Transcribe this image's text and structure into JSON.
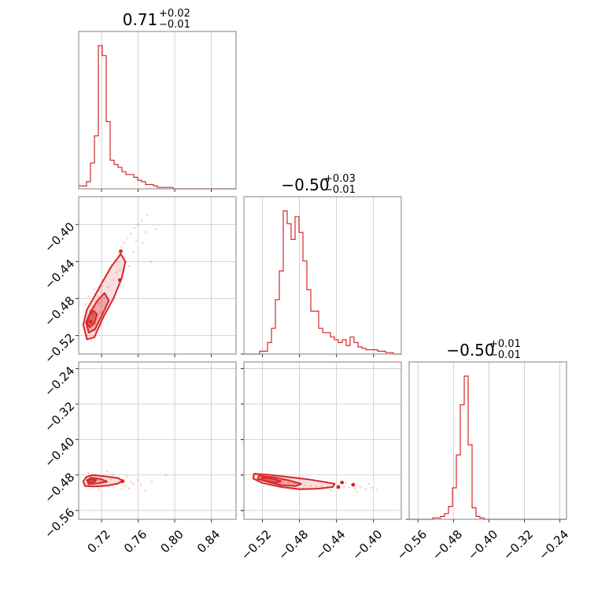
{
  "chart_data": {
    "type": "corner",
    "color": "#d62728",
    "parameters": [
      {
        "id": "p0",
        "range": [
          0.695,
          0.867
        ],
        "ticks": [
          "0.72",
          "0.76",
          "0.80",
          "0.84"
        ],
        "title": {
          "value": "0.71",
          "plus": "+0.02",
          "minus": "−0.01"
        }
      },
      {
        "id": "p1",
        "range": [
          -0.54,
          -0.37
        ],
        "ticks": [
          "−0.52",
          "−0.48",
          "−0.44",
          "−0.40"
        ],
        "title": {
          "value": "−0.50",
          "plus": "+0.03",
          "minus": "−0.01"
        }
      },
      {
        "id": "p2",
        "range": [
          -0.58,
          -0.225
        ],
        "ticks": [
          "−0.56",
          "−0.48",
          "−0.40",
          "−0.32",
          "−0.24"
        ],
        "title": {
          "value": "−0.50",
          "plus": "+0.01",
          "minus": "−0.01"
        }
      }
    ],
    "histograms": [
      {
        "param": 0,
        "edges_start": 0.695,
        "edges_end": 0.867,
        "counts": [
          2,
          2,
          5,
          18,
          37,
          100,
          93,
          47,
          20,
          17,
          15,
          12,
          10,
          10,
          8,
          6,
          5,
          3,
          3,
          2,
          1,
          1,
          1,
          1,
          0,
          0,
          0,
          0,
          0,
          0,
          0,
          0,
          0,
          0,
          0,
          0,
          0,
          0,
          0,
          0
        ]
      },
      {
        "param": 1,
        "edges_start": -0.54,
        "edges_end": -0.37,
        "counts": [
          0,
          0,
          0,
          0,
          2,
          2,
          8,
          18,
          38,
          58,
          100,
          91,
          80,
          96,
          85,
          65,
          45,
          30,
          30,
          18,
          15,
          15,
          12,
          10,
          8,
          10,
          6,
          12,
          8,
          5,
          4,
          3,
          3,
          3,
          2,
          2,
          1,
          1,
          0,
          0
        ]
      },
      {
        "param": 2,
        "edges_start": -0.58,
        "edges_end": -0.225,
        "counts": [
          0,
          0,
          0,
          0,
          0,
          0,
          1,
          1,
          2,
          4,
          9,
          22,
          45,
          80,
          100,
          52,
          8,
          2,
          1,
          0,
          0,
          0,
          0,
          0,
          0,
          0,
          0,
          0,
          0,
          0,
          0,
          0,
          0,
          0,
          0,
          0,
          0,
          0,
          0,
          0
        ]
      }
    ],
    "scatter": [
      {
        "x_param": 0,
        "y_param": 1,
        "points": [
          [
            0.704,
            -0.52
          ],
          [
            0.706,
            -0.512
          ],
          [
            0.708,
            -0.505
          ],
          [
            0.71,
            -0.498
          ],
          [
            0.712,
            -0.49
          ],
          [
            0.705,
            -0.5
          ],
          [
            0.707,
            -0.493
          ],
          [
            0.711,
            -0.507
          ],
          [
            0.714,
            -0.483
          ],
          [
            0.716,
            -0.478
          ],
          [
            0.718,
            -0.472
          ],
          [
            0.72,
            -0.466
          ],
          [
            0.722,
            -0.46
          ],
          [
            0.725,
            -0.455
          ],
          [
            0.728,
            -0.448
          ],
          [
            0.731,
            -0.444
          ],
          [
            0.735,
            -0.438
          ],
          [
            0.739,
            -0.432
          ],
          [
            0.742,
            -0.425
          ],
          [
            0.745,
            -0.42
          ],
          [
            0.748,
            -0.415
          ],
          [
            0.752,
            -0.41
          ],
          [
            0.756,
            -0.404
          ],
          [
            0.76,
            -0.4
          ],
          [
            0.764,
            -0.396
          ],
          [
            0.77,
            -0.39
          ],
          [
            0.709,
            -0.525
          ],
          [
            0.713,
            -0.515
          ],
          [
            0.719,
            -0.495
          ],
          [
            0.724,
            -0.475
          ],
          [
            0.733,
            -0.46
          ],
          [
            0.74,
            -0.45
          ],
          [
            0.747,
            -0.44
          ],
          [
            0.755,
            -0.43
          ],
          [
            0.765,
            -0.42
          ],
          [
            0.78,
            -0.405
          ],
          [
            0.703,
            -0.486
          ],
          [
            0.706,
            -0.478
          ],
          [
            0.712,
            -0.47
          ],
          [
            0.717,
            -0.485
          ],
          [
            0.727,
            -0.468
          ],
          [
            0.736,
            -0.452
          ],
          [
            0.75,
            -0.445
          ],
          [
            0.758,
            -0.418
          ],
          [
            0.768,
            -0.408
          ],
          [
            0.774,
            -0.44
          ]
        ],
        "contours": [
          [
            [
              0.704,
              -0.524
            ],
            [
              0.712,
              -0.522
            ],
            [
              0.722,
              -0.5
            ],
            [
              0.733,
              -0.48
            ],
            [
              0.742,
              -0.458
            ],
            [
              0.746,
              -0.44
            ],
            [
              0.741,
              -0.432
            ],
            [
              0.731,
              -0.445
            ],
            [
              0.721,
              -0.462
            ],
            [
              0.712,
              -0.478
            ],
            [
              0.704,
              -0.492
            ],
            [
              0.7,
              -0.508
            ]
          ],
          [
            [
              0.706,
              -0.517
            ],
            [
              0.713,
              -0.513
            ],
            [
              0.721,
              -0.497
            ],
            [
              0.728,
              -0.482
            ],
            [
              0.723,
              -0.474
            ],
            [
              0.715,
              -0.483
            ],
            [
              0.708,
              -0.494
            ],
            [
              0.703,
              -0.506
            ]
          ],
          [
            [
              0.707,
              -0.511
            ],
            [
              0.712,
              -0.507
            ],
            [
              0.715,
              -0.497
            ],
            [
              0.711,
              -0.493
            ],
            [
              0.706,
              -0.499
            ],
            [
              0.704,
              -0.507
            ]
          ]
        ],
        "markers": [
          [
            0.741,
            -0.429
          ],
          [
            0.74,
            -0.46
          ],
          [
            0.708,
            -0.505
          ]
        ]
      },
      {
        "x_param": 0,
        "y_param": 2,
        "points": [
          [
            0.704,
            -0.49
          ],
          [
            0.708,
            -0.485
          ],
          [
            0.712,
            -0.495
          ],
          [
            0.716,
            -0.488
          ],
          [
            0.72,
            -0.492
          ],
          [
            0.725,
            -0.497
          ],
          [
            0.73,
            -0.49
          ],
          [
            0.735,
            -0.5
          ],
          [
            0.74,
            -0.495
          ],
          [
            0.745,
            -0.505
          ],
          [
            0.75,
            -0.51
          ],
          [
            0.755,
            -0.5
          ],
          [
            0.76,
            -0.492
          ],
          [
            0.706,
            -0.475
          ],
          [
            0.71,
            -0.505
          ],
          [
            0.714,
            -0.478
          ],
          [
            0.722,
            -0.482
          ],
          [
            0.728,
            -0.507
          ],
          [
            0.733,
            -0.48
          ],
          [
            0.738,
            -0.486
          ],
          [
            0.742,
            -0.512
          ],
          [
            0.748,
            -0.483
          ],
          [
            0.752,
            -0.496
          ],
          [
            0.763,
            -0.502
          ],
          [
            0.768,
            -0.515
          ],
          [
            0.775,
            -0.495
          ],
          [
            0.79,
            -0.48
          ],
          [
            0.703,
            -0.5
          ],
          [
            0.717,
            -0.51
          ],
          [
            0.726,
            -0.472
          ]
        ],
        "contours": [
          [
            [
              0.702,
              -0.505
            ],
            [
              0.712,
              -0.506
            ],
            [
              0.726,
              -0.504
            ],
            [
              0.737,
              -0.5
            ],
            [
              0.744,
              -0.494
            ],
            [
              0.738,
              -0.487
            ],
            [
              0.724,
              -0.483
            ],
            [
              0.71,
              -0.48
            ],
            [
              0.703,
              -0.485
            ],
            [
              0.7,
              -0.495
            ]
          ],
          [
            [
              0.706,
              -0.501
            ],
            [
              0.716,
              -0.499
            ],
            [
              0.726,
              -0.495
            ],
            [
              0.719,
              -0.489
            ],
            [
              0.709,
              -0.486
            ],
            [
              0.704,
              -0.492
            ]
          ],
          [
            [
              0.707,
              -0.497
            ],
            [
              0.713,
              -0.495
            ],
            [
              0.714,
              -0.491
            ],
            [
              0.708,
              -0.49
            ],
            [
              0.705,
              -0.493
            ]
          ]
        ],
        "markers": [
          [
            0.743,
            -0.494
          ]
        ]
      },
      {
        "x_param": 1,
        "y_param": 2,
        "points": [
          [
            -0.528,
            -0.478
          ],
          [
            -0.522,
            -0.482
          ],
          [
            -0.516,
            -0.485
          ],
          [
            -0.51,
            -0.488
          ],
          [
            -0.504,
            -0.492
          ],
          [
            -0.498,
            -0.494
          ],
          [
            -0.492,
            -0.497
          ],
          [
            -0.486,
            -0.499
          ],
          [
            -0.48,
            -0.501
          ],
          [
            -0.474,
            -0.503
          ],
          [
            -0.468,
            -0.504
          ],
          [
            -0.462,
            -0.506
          ],
          [
            -0.456,
            -0.505
          ],
          [
            -0.45,
            -0.507
          ],
          [
            -0.444,
            -0.506
          ],
          [
            -0.438,
            -0.508
          ],
          [
            -0.432,
            -0.507
          ],
          [
            -0.426,
            -0.509
          ],
          [
            -0.42,
            -0.51
          ],
          [
            -0.414,
            -0.508
          ],
          [
            -0.408,
            -0.512
          ],
          [
            -0.402,
            -0.509
          ],
          [
            -0.396,
            -0.513
          ],
          [
            -0.524,
            -0.488
          ],
          [
            -0.514,
            -0.478
          ],
          [
            -0.5,
            -0.5
          ],
          [
            -0.49,
            -0.488
          ],
          [
            -0.476,
            -0.51
          ],
          [
            -0.46,
            -0.495
          ],
          [
            -0.446,
            -0.515
          ],
          [
            -0.43,
            -0.498
          ],
          [
            -0.418,
            -0.518
          ],
          [
            -0.405,
            -0.5
          ]
        ],
        "contours": [
          [
            [
              -0.529,
              -0.477
            ],
            [
              -0.51,
              -0.48
            ],
            [
              -0.49,
              -0.485
            ],
            [
              -0.47,
              -0.49
            ],
            [
              -0.452,
              -0.496
            ],
            [
              -0.442,
              -0.5
            ],
            [
              -0.444,
              -0.507
            ],
            [
              -0.46,
              -0.511
            ],
            [
              -0.48,
              -0.512
            ],
            [
              -0.5,
              -0.507
            ],
            [
              -0.52,
              -0.498
            ],
            [
              -0.53,
              -0.488
            ]
          ],
          [
            [
              -0.524,
              -0.482
            ],
            [
              -0.508,
              -0.485
            ],
            [
              -0.492,
              -0.492
            ],
            [
              -0.478,
              -0.5
            ],
            [
              -0.484,
              -0.505
            ],
            [
              -0.5,
              -0.503
            ],
            [
              -0.515,
              -0.495
            ],
            [
              -0.525,
              -0.489
            ]
          ],
          [
            [
              -0.52,
              -0.486
            ],
            [
              -0.508,
              -0.489
            ],
            [
              -0.5,
              -0.494
            ],
            [
              -0.506,
              -0.498
            ],
            [
              -0.515,
              -0.494
            ],
            [
              -0.522,
              -0.49
            ]
          ]
        ],
        "markers": [
          [
            -0.434,
            -0.497
          ],
          [
            -0.422,
            -0.502
          ],
          [
            -0.438,
            -0.507
          ]
        ]
      }
    ]
  }
}
